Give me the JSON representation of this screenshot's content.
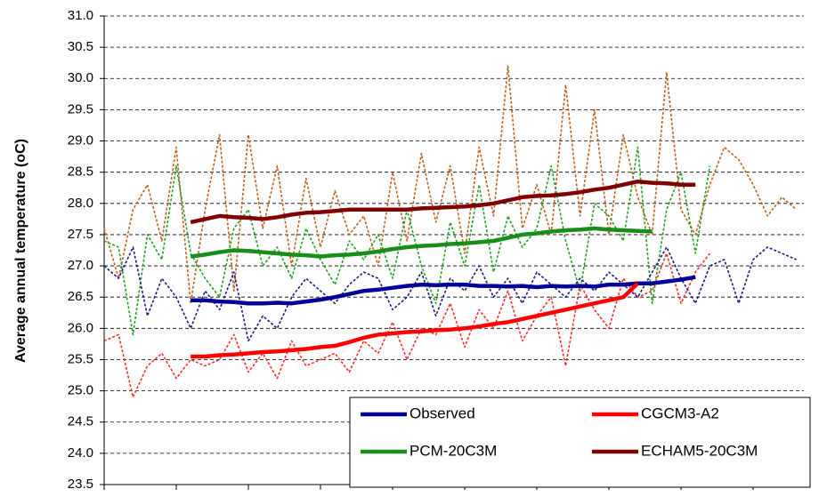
{
  "chart_data": {
    "type": "line",
    "ylabel": "Average annual temperature (oC)",
    "categories": [
      null,
      null,
      null,
      null,
      null,
      null,
      null,
      null,
      null,
      null,
      null,
      null,
      null,
      null,
      null,
      null,
      null,
      null,
      null,
      null,
      null,
      null,
      null,
      null,
      null,
      null,
      null,
      null,
      null,
      null,
      null,
      null,
      null,
      null,
      null,
      null,
      null,
      null,
      null,
      null,
      null,
      null,
      null,
      null,
      null,
      null,
      null,
      null,
      null
    ],
    "ylim": [
      23.5,
      31
    ],
    "yticks": [
      {
        "value": 23.5,
        "label": "23.5"
      },
      {
        "value": 24,
        "label": "24.0"
      },
      {
        "value": 24.5,
        "label": "24.5"
      },
      {
        "value": 25,
        "label": "25.0"
      },
      {
        "value": 25.5,
        "label": "25.5"
      },
      {
        "value": 26,
        "label": "26.0"
      },
      {
        "value": 26.5,
        "label": "26.5"
      },
      {
        "value": 27,
        "label": "27.0"
      },
      {
        "value": 27.5,
        "label": "27.5"
      },
      {
        "value": 28,
        "label": "28.0"
      },
      {
        "value": 28.5,
        "label": "28.5"
      },
      {
        "value": 29,
        "label": "29.0"
      },
      {
        "value": 29.5,
        "label": "29.5"
      },
      {
        "value": 30,
        "label": "30.0"
      },
      {
        "value": 30.5,
        "label": "30.5"
      },
      {
        "value": 31,
        "label": "31.0"
      }
    ],
    "grid": true,
    "legend": "bottom-right",
    "series": [
      {
        "color": "#c0601a",
        "dashed": true,
        "values": [
          27.6,
          26.8,
          27.9,
          28.3,
          27.4,
          28.9,
          26.4,
          27.9,
          29.1,
          26.6,
          29.1,
          27.6,
          28.6,
          27.0,
          28.4,
          27.3,
          28.2,
          27.5,
          27.8,
          27.0,
          28.5,
          27.4,
          28.8,
          27.7,
          28.6,
          27.2,
          28.9,
          27.8,
          30.2,
          27.6,
          28.3,
          27.5,
          29.9,
          27.8,
          29.5,
          27.5,
          29.1,
          28.1,
          27.5,
          30.1,
          27.9,
          27.5,
          28.3,
          28.9,
          28.7,
          28.3,
          27.8,
          28.1,
          27.9
        ]
      },
      {
        "color": "#22a022",
        "dashed": true,
        "values": [
          27.4,
          27.3,
          25.9,
          27.5,
          27.1,
          28.6,
          27.2,
          26.8,
          26.5,
          27.6,
          27.9,
          27.0,
          27.3,
          26.8,
          27.6,
          27.1,
          26.7,
          27.4,
          27.1,
          27.5,
          26.8,
          27.9,
          27.0,
          26.4,
          27.7,
          27.0,
          28.3,
          26.9,
          27.8,
          27.3,
          27.6,
          28.6,
          27.4,
          26.6,
          28.0,
          27.8,
          27.4,
          28.9,
          26.4,
          27.9,
          28.5,
          27.2,
          28.6,
          null,
          null,
          null,
          null,
          null,
          null
        ]
      },
      {
        "color": "#ff2a2a",
        "dashed": true,
        "values": [
          25.8,
          25.9,
          24.9,
          25.4,
          25.6,
          25.2,
          25.5,
          25.4,
          25.5,
          25.9,
          25.3,
          25.6,
          25.2,
          25.8,
          25.4,
          25.5,
          25.6,
          25.3,
          25.8,
          25.6,
          26.1,
          25.5,
          26.0,
          25.9,
          26.4,
          25.7,
          26.3,
          26.0,
          26.6,
          25.8,
          26.2,
          26.5,
          25.4,
          26.7,
          26.3,
          26.0,
          26.8,
          26.5,
          26.6,
          27.2,
          26.4,
          26.9,
          27.2,
          null,
          null,
          null,
          null,
          null,
          null
        ]
      },
      {
        "color": "#1a1a8c",
        "dashed": true,
        "values": [
          27.0,
          26.8,
          27.3,
          26.2,
          26.8,
          26.5,
          26.0,
          26.6,
          26.3,
          26.9,
          25.8,
          26.2,
          26.0,
          26.5,
          26.8,
          26.6,
          26.4,
          26.7,
          26.9,
          26.8,
          26.3,
          26.5,
          26.9,
          26.2,
          26.8,
          26.6,
          27.0,
          26.5,
          26.8,
          26.4,
          26.9,
          26.7,
          26.5,
          26.8,
          26.6,
          26.9,
          26.7,
          26.5,
          26.9,
          27.3,
          26.8,
          26.4,
          27.0,
          27.1,
          26.4,
          27.1,
          27.3,
          27.2,
          27.1
        ]
      },
      {
        "name": "Observed",
        "color": "#000099",
        "values": [
          null,
          null,
          null,
          null,
          null,
          null,
          26.45,
          26.45,
          26.43,
          26.42,
          26.4,
          26.4,
          26.41,
          26.4,
          26.43,
          26.46,
          26.5,
          26.55,
          26.6,
          26.62,
          26.65,
          26.68,
          26.7,
          26.69,
          26.7,
          26.7,
          26.68,
          26.68,
          26.67,
          26.68,
          26.66,
          26.68,
          26.67,
          26.68,
          26.67,
          26.7,
          26.7,
          26.72,
          26.72,
          26.75,
          26.78,
          26.82,
          null,
          null,
          null,
          null,
          null,
          null,
          null
        ]
      },
      {
        "name": "CGCM3-A2",
        "color": "#ff0000",
        "values": [
          null,
          null,
          null,
          null,
          null,
          null,
          25.55,
          25.55,
          25.57,
          25.58,
          25.6,
          25.62,
          25.63,
          25.65,
          25.67,
          25.7,
          25.72,
          25.78,
          25.85,
          25.9,
          25.92,
          25.94,
          25.95,
          25.97,
          25.98,
          26.0,
          26.03,
          26.07,
          26.1,
          26.15,
          26.2,
          26.25,
          26.3,
          26.35,
          26.4,
          26.45,
          26.5,
          26.72,
          null,
          null,
          null,
          null,
          null,
          null,
          null,
          null,
          null,
          null,
          null
        ]
      },
      {
        "name": "PCM-20C3M",
        "color": "#1a8c1a",
        "values": [
          null,
          null,
          null,
          null,
          null,
          null,
          27.15,
          27.18,
          27.22,
          27.25,
          27.24,
          27.22,
          27.2,
          27.18,
          27.17,
          27.15,
          27.17,
          27.18,
          27.2,
          27.23,
          27.27,
          27.3,
          27.32,
          27.33,
          27.35,
          27.36,
          27.38,
          27.4,
          27.45,
          27.5,
          27.52,
          27.55,
          27.57,
          27.58,
          27.6,
          27.58,
          27.57,
          27.56,
          27.55,
          null,
          null,
          null,
          null,
          null,
          null,
          null,
          null,
          null,
          null
        ]
      },
      {
        "name": "ECHAM5-20C3M",
        "color": "#800000",
        "values": [
          null,
          null,
          null,
          null,
          null,
          null,
          27.7,
          27.75,
          27.8,
          27.78,
          27.77,
          27.75,
          27.78,
          27.82,
          27.85,
          27.86,
          27.88,
          27.9,
          27.9,
          27.9,
          27.9,
          27.9,
          27.92,
          27.93,
          27.94,
          27.95,
          27.97,
          28.0,
          28.05,
          28.1,
          28.12,
          28.13,
          28.15,
          28.18,
          28.22,
          28.25,
          28.3,
          28.35,
          28.33,
          28.32,
          28.3,
          28.3,
          null,
          null,
          null,
          null,
          null,
          null,
          null
        ]
      }
    ]
  }
}
